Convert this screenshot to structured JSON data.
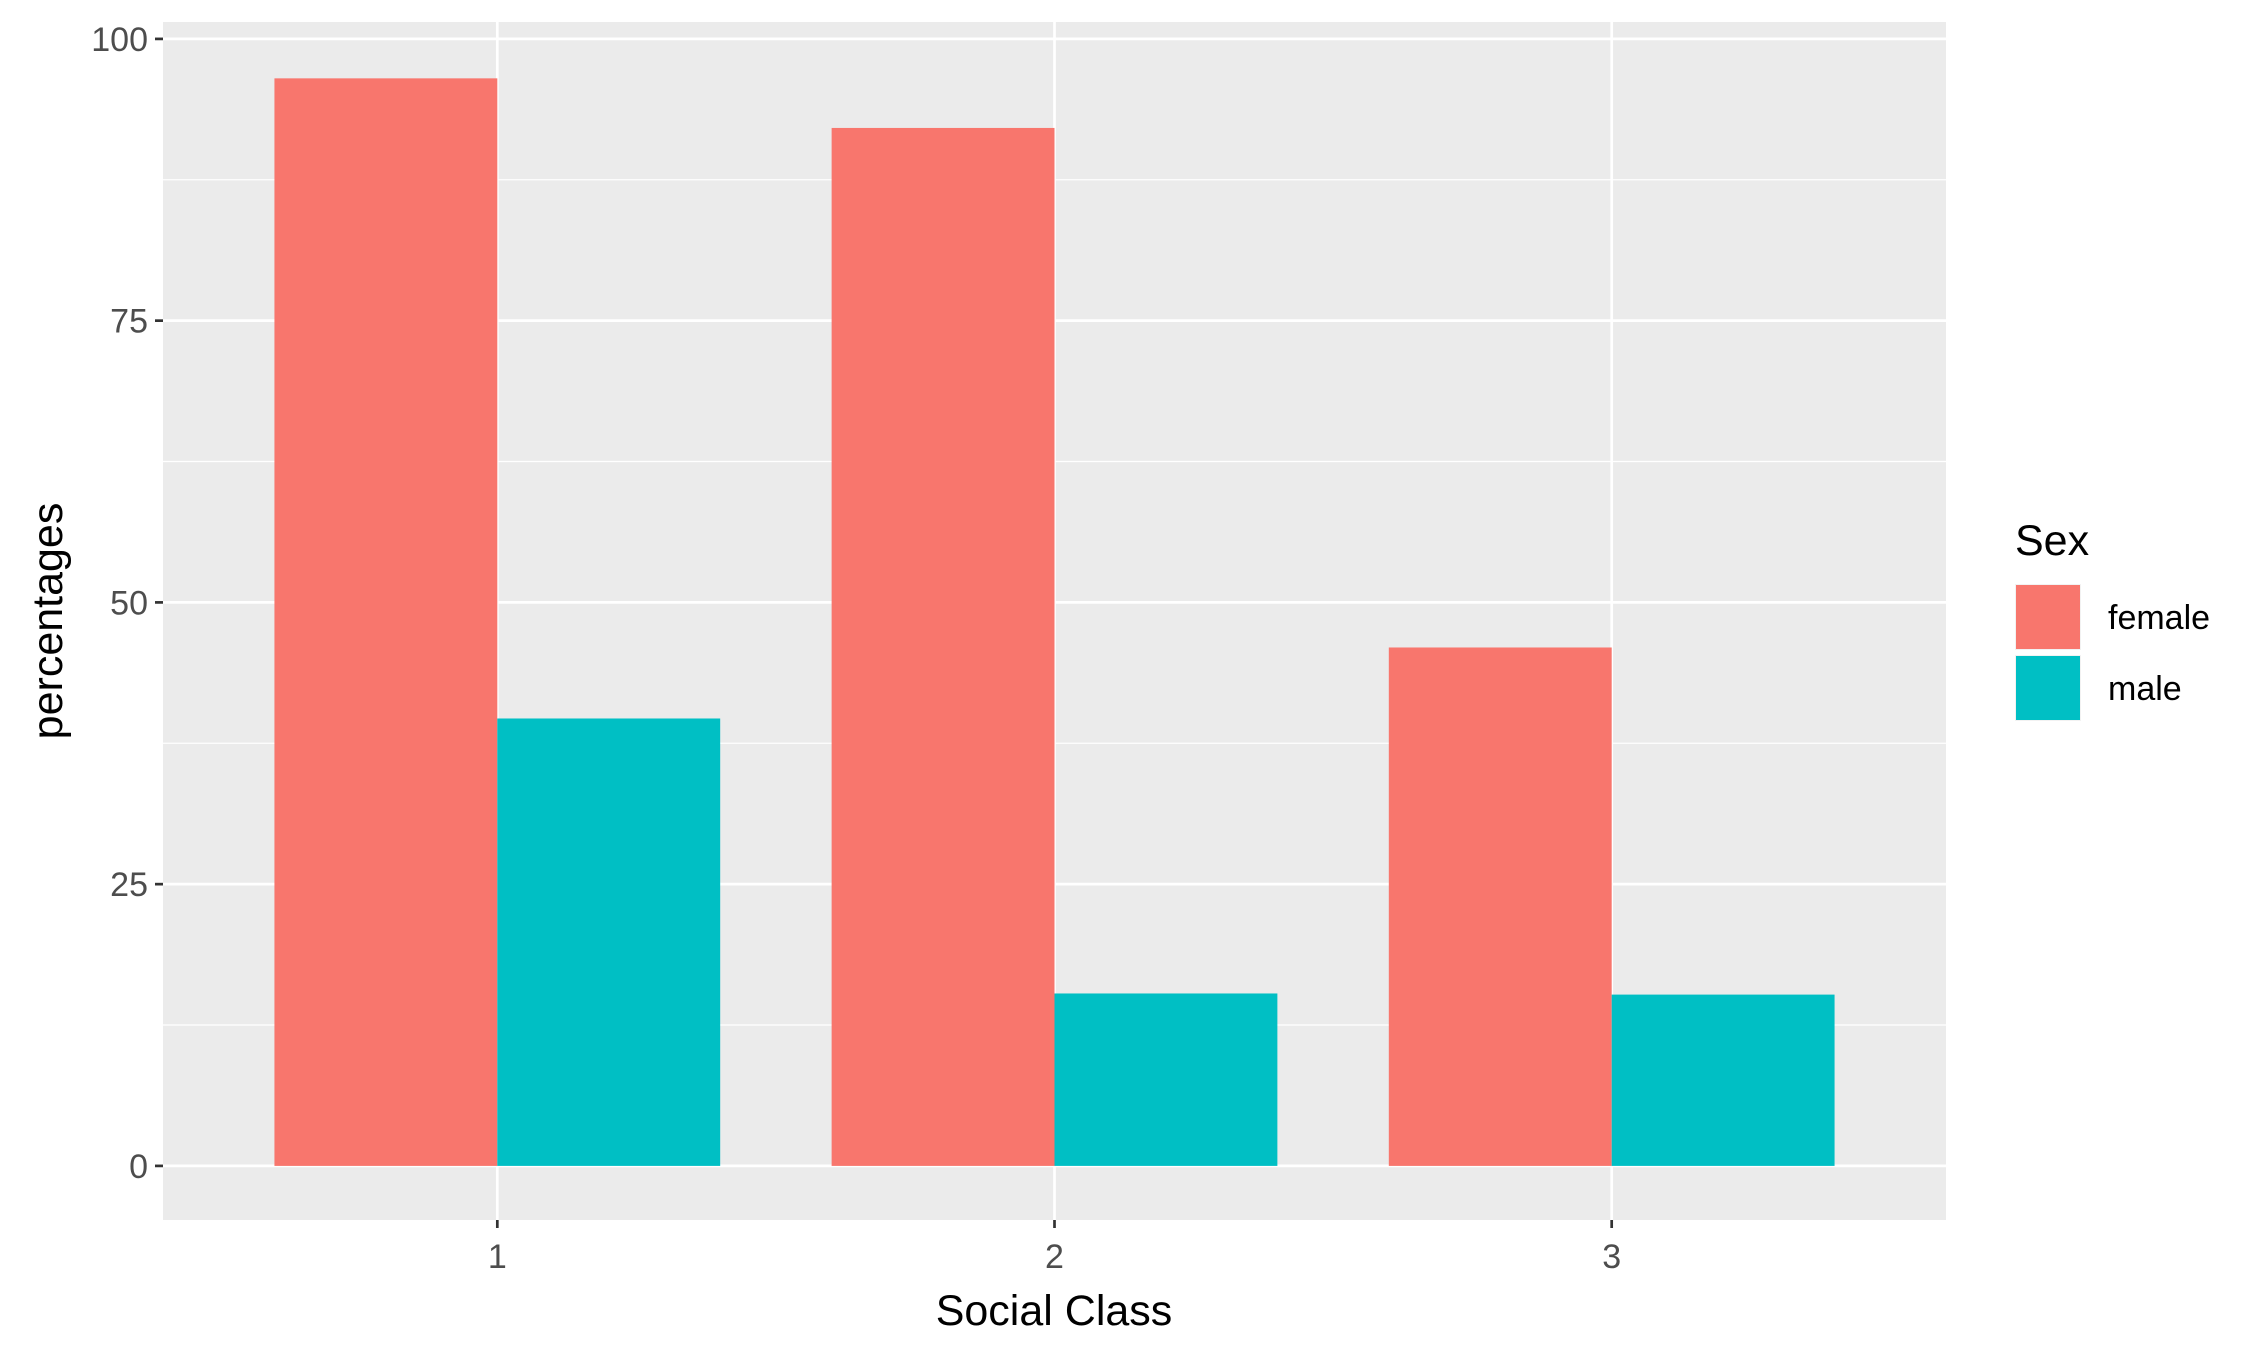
{
  "chart_data": {
    "type": "bar",
    "categories": [
      "1",
      "2",
      "3"
    ],
    "series": [
      {
        "name": "female",
        "values": [
          96.5,
          92.1,
          46.0
        ],
        "color": "#F8766D"
      },
      {
        "name": "male",
        "values": [
          39.7,
          15.3,
          15.2
        ],
        "color": "#00BFC4"
      }
    ],
    "xlabel": "Social Class",
    "ylabel": "percentages",
    "ylim": [
      -4.8,
      101.5
    ],
    "yticks": [
      0,
      25,
      50,
      75,
      100
    ],
    "ytick_labels": [
      "0",
      "25",
      "50",
      "75",
      "100"
    ],
    "grid": true,
    "legend": {
      "title": "Sex",
      "position": "right",
      "items": [
        "female",
        "male"
      ]
    },
    "colors": {
      "panel_background": "#EBEBEB",
      "grid": "#FFFFFF",
      "tick_text": "#4D4D4D",
      "tick_mark": "#333333"
    }
  }
}
